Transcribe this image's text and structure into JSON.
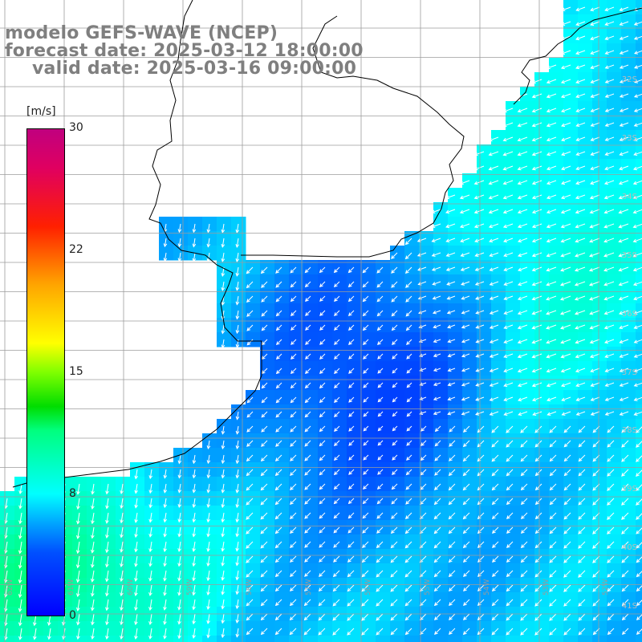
{
  "title": {
    "line1": "modelo GEFS-WAVE (NCEP)",
    "line2": "forecast date: 2025-03-12 18:00:00",
    "line3": "valid date: 2025-03-16 09:00:00"
  },
  "colorbar": {
    "unit": "[m/s]",
    "ticks": [
      "30",
      "22",
      "15",
      "8",
      "0"
    ]
  },
  "lat_labels": [
    "32S",
    "33S",
    "34S",
    "35S",
    "36S",
    "37S",
    "38S",
    "39S",
    "40S",
    "41S"
  ],
  "lon_labels": [
    "62W",
    "61W",
    "60W",
    "59W",
    "58W",
    "57W",
    "56W",
    "55W",
    "54W",
    "53W",
    "52W"
  ],
  "colors": {
    "land": "#ffffff",
    "coast": "#000000",
    "grid": "#9c9c9c",
    "arrow": "#ffffff",
    "title": "#7f7f7f"
  },
  "chart_data": {
    "type": "heatmap",
    "variable": "wind speed",
    "units": "m/s",
    "colorbar_range": [
      0,
      30
    ],
    "approx_field_description": [
      {
        "region": "southwest corner",
        "speed_ms": 11
      },
      {
        "region": "south-central",
        "speed_ms": 7
      },
      {
        "region": "central basin",
        "speed_ms": 3
      },
      {
        "region": "east offshore",
        "speed_ms": 8
      },
      {
        "region": "coastal shelf",
        "speed_ms": 5
      }
    ]
  }
}
